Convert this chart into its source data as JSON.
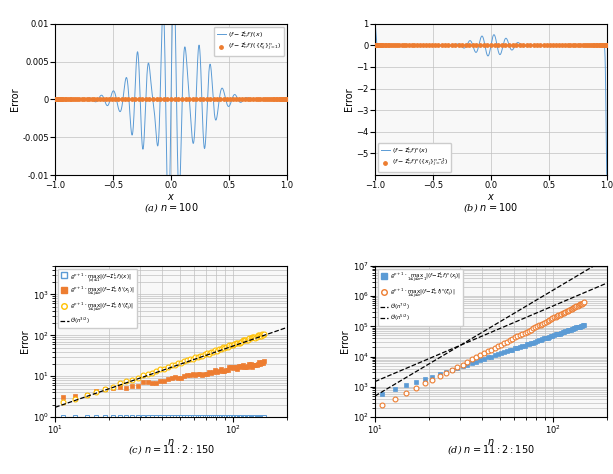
{
  "fig_width": 6.13,
  "fig_height": 4.74,
  "dpi": 100,
  "background": "#ffffff",
  "subplot_captions": [
    "(a) $n = 100$",
    "(b) $n = 100$",
    "(c) $n = 11:2:150$",
    "(d) $n = 11:2:150$"
  ],
  "top_left": {
    "xlim": [
      -1,
      1
    ],
    "ylim": [
      -0.01,
      0.01
    ],
    "xlabel": "$x$",
    "ylabel": "Error",
    "yticks": [
      -0.01,
      -0.005,
      0,
      0.005,
      0.01
    ],
    "xticks": [
      -1,
      -0.5,
      0,
      0.5,
      1
    ],
    "legend": [
      "$(f - \\mathcal{I}_n^L f)'(x)$",
      "$(f - \\mathcal{I}_n^L f)'(\\{\\xi_j\\}_{j=1}^n)$"
    ],
    "line_color": "#5b9bd5",
    "dot_color": "#ed7d31"
  },
  "top_right": {
    "xlim": [
      -1,
      1
    ],
    "ylim": [
      -6,
      1
    ],
    "xlabel": "$x$",
    "ylabel": "Error",
    "yticks": [
      -5,
      -4,
      -3,
      -2,
      -1,
      0,
      1
    ],
    "xticks": [
      -1,
      -0.5,
      0,
      0.5,
      1
    ],
    "legend": [
      "$(f - \\mathcal{I}_n^L f)''(x)$",
      "$(f - \\mathcal{I}_n^L f)''(\\{x_j\\}_{j=0}^{n-1})$"
    ],
    "line_color": "#5b9bd5",
    "dot_color": "#ed7d31"
  },
  "bottom_left": {
    "xlim_log": [
      10,
      200
    ],
    "ylim_log": [
      1.0,
      5000
    ],
    "xlabel": "$n$",
    "ylabel": "Error",
    "legend": [
      "$\\varrho^{n+1} \\cdot \\max_{|x|\\leq 1} |(f - \\mathcal{I}_n^L f)(x)|$",
      "$\\varrho^{n+1} \\cdot \\max_{0\\leq j\\leq n} |(f - \\mathcal{I}_n^L f)'(x_j)|$",
      "$\\varrho^{n+1} \\cdot \\max_{1\\leq j\\leq n} |(f - \\mathcal{I}_n^L f)'(\\xi_j)|$",
      "$\\mathcal{O}(n^{3/2})$"
    ],
    "colors": [
      "#5b9bd5",
      "#ed7d31",
      "#ffc000",
      "#000000"
    ],
    "markers": [
      "s",
      "s",
      "o",
      "--"
    ]
  },
  "bottom_right": {
    "xlim_log": [
      10,
      200
    ],
    "ylim_log": [
      100,
      10000000.0
    ],
    "xlabel": "$n$",
    "ylabel": "Error",
    "legend": [
      "$\\varrho^{n+1} \\cdot \\max_{1\\leq j\\leq n-1} |(f - \\mathcal{I}_n^L f)''(x_j)|$",
      "$\\varrho^{n+1} \\cdot \\max_{1\\leq j\\leq n} |(f - \\mathcal{I}_n^L f)''(\\xi_j)|$",
      "$\\mathcal{O}(n^{7/2})$",
      "$\\mathcal{O}(n^{5/2})$"
    ],
    "colors": [
      "#5b9bd5",
      "#ed7d31",
      "#000000",
      "#000000"
    ],
    "markers": [
      "s",
      "o",
      "--",
      "--"
    ]
  }
}
